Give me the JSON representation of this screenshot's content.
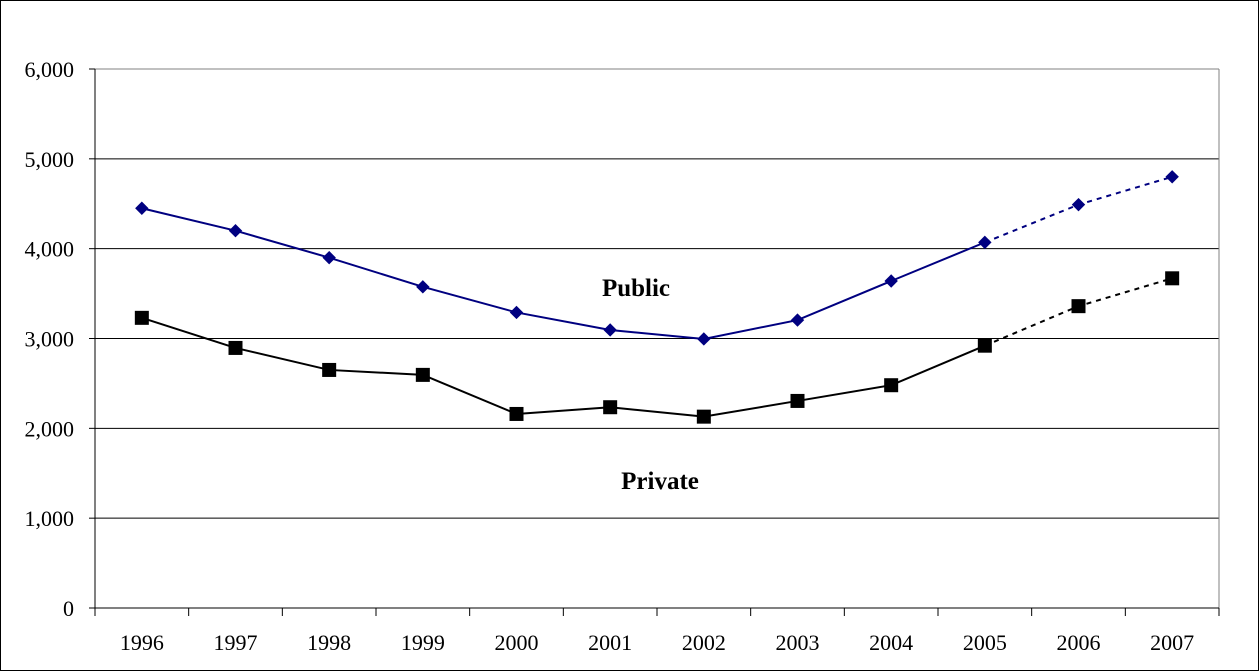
{
  "chart_data": {
    "type": "line",
    "title": "",
    "xlabel": "",
    "ylabel": "",
    "categories": [
      "1996",
      "1997",
      "1998",
      "1999",
      "2000",
      "2001",
      "2002",
      "2003",
      "2004",
      "2005",
      "2006",
      "2007"
    ],
    "ylim": [
      0,
      6000
    ],
    "yticks": [
      0,
      1000,
      2000,
      3000,
      4000,
      5000,
      6000
    ],
    "ytick_labels": [
      "0",
      "1,000",
      "2,000",
      "3,000",
      "4,000",
      "5,000",
      "6,000"
    ],
    "grid": true,
    "legend": "none",
    "projection_starts_after": "2005",
    "series": [
      {
        "name": "Public",
        "color": "#000080",
        "marker": "diamond",
        "values": [
          4450,
          4200,
          3900,
          3575,
          3290,
          3095,
          2995,
          3205,
          3640,
          4070,
          4490,
          4800
        ]
      },
      {
        "name": "Private",
        "color": "#000000",
        "marker": "square",
        "values": [
          3230,
          2895,
          2650,
          2595,
          2160,
          2235,
          2130,
          2305,
          2480,
          2920,
          3360,
          3670
        ]
      }
    ]
  }
}
